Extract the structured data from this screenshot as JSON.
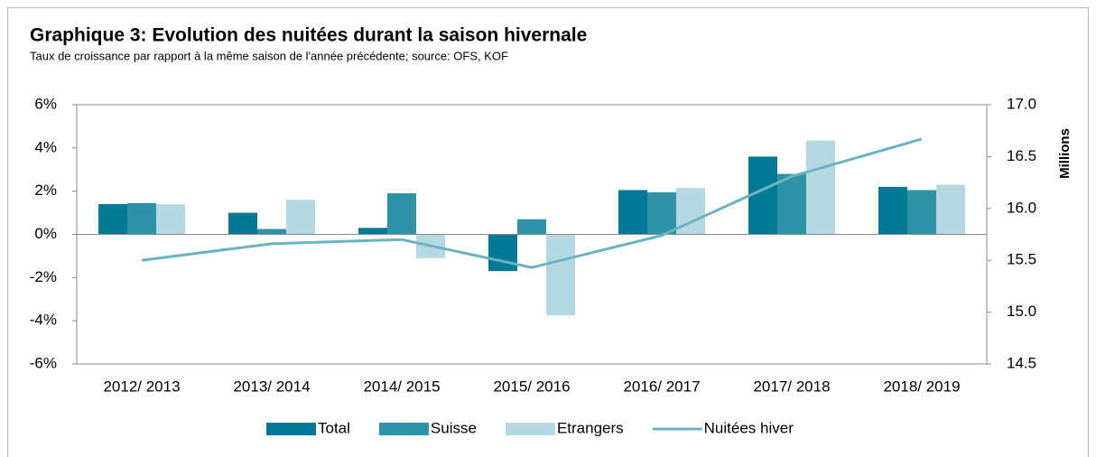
{
  "chart_data": {
    "type": "bar",
    "title": "Graphique 3: Evolution des nuitées durant la saison hivernale",
    "subtitle": "Taux de croissance par rapport à la même saison de l'année précédente; source: OFS, KOF",
    "y2_label": "Millions",
    "categories": [
      "2012/ 2013",
      "2013/ 2014",
      "2014/ 2015",
      "2015/ 2016",
      "2016/ 2017",
      "2017/ 2018",
      "2018/ 2019"
    ],
    "series": [
      {
        "name": "Total",
        "color": "#007a94",
        "values": [
          1.4,
          1.0,
          0.3,
          -1.7,
          2.05,
          3.6,
          2.2
        ]
      },
      {
        "name": "Suisse",
        "color": "#2e93a6",
        "values": [
          1.45,
          0.25,
          1.9,
          0.7,
          1.95,
          2.8,
          2.05
        ]
      },
      {
        "name": "Etrangers",
        "color": "#b5d9e0",
        "values": [
          1.4,
          1.6,
          -1.1,
          -3.75,
          2.15,
          4.35,
          2.3
        ]
      },
      {
        "name": "Nuitées hiver",
        "color": "#6bb3c2",
        "type": "line",
        "axis": "y2",
        "values": [
          15.5,
          15.66,
          15.7,
          15.43,
          15.74,
          16.31,
          16.67
        ]
      }
    ],
    "ylim": [
      -6,
      6
    ],
    "yticks": [
      {
        "value": -6,
        "label": "-6%"
      },
      {
        "value": -4,
        "label": "-4%"
      },
      {
        "value": -2,
        "label": "-2%"
      },
      {
        "value": 0,
        "label": "0%"
      },
      {
        "value": 2,
        "label": "2%"
      },
      {
        "value": 4,
        "label": "4%"
      },
      {
        "value": 6,
        "label": "6%"
      }
    ],
    "y2lim": [
      14.5,
      17.0
    ],
    "y2ticks": [
      14.5,
      {
        "value": 15,
        "label": "15.0"
      },
      15.5,
      {
        "value": 16,
        "label": "16.0"
      },
      16.5,
      {
        "value": 17,
        "label": "17.0"
      }
    ]
  }
}
